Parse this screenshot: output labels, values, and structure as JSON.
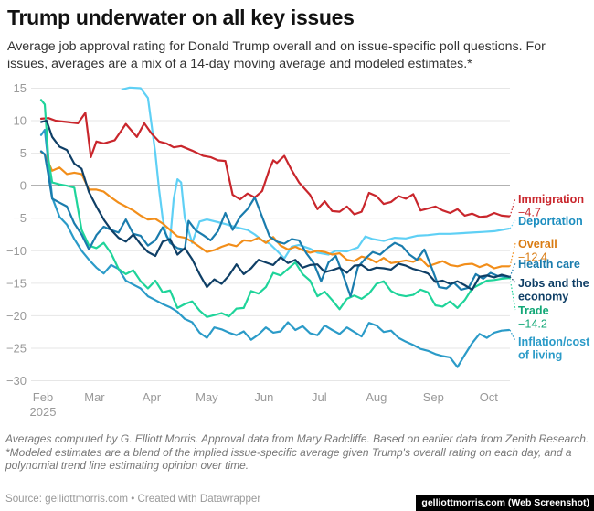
{
  "chart_data": {
    "type": "line",
    "title": "Trump underwater on all key issues",
    "subtitle": "Average job approval rating for Donald Trump overall and on issue-specific poll questions. For issues, averages are a mix of a 14-day moving average and modeled estimates.*",
    "xlabel": "",
    "ylabel": "",
    "ylim": [
      -30,
      15
    ],
    "yticks": [
      15,
      10,
      5,
      0,
      -5,
      -10,
      -15,
      -20,
      -25,
      -30
    ],
    "ytick_labels": [
      "15",
      "10",
      "5",
      "0",
      "−5",
      "−10",
      "−15",
      "−20",
      "−25",
      "−30"
    ],
    "x_unit": "days since Feb 1, 2025",
    "xlim": [
      0,
      254
    ],
    "xticks": [
      {
        "day": 0,
        "label": "Feb",
        "sublabel": "2025"
      },
      {
        "day": 28,
        "label": "Mar"
      },
      {
        "day": 59,
        "label": "Apr"
      },
      {
        "day": 89,
        "label": "May"
      },
      {
        "day": 120,
        "label": "Jun"
      },
      {
        "day": 150,
        "label": "Jul"
      },
      {
        "day": 181,
        "label": "Aug"
      },
      {
        "day": 212,
        "label": "Sep"
      },
      {
        "day": 242,
        "label": "Oct"
      }
    ],
    "grid": true,
    "zero_line": true,
    "series": [
      {
        "name": "Immigration",
        "color": "#c9262c",
        "end_value_label": "−4.7",
        "x": [
          0,
          4,
          8,
          14,
          20,
          24,
          27,
          30,
          34,
          40,
          46,
          52,
          56,
          60,
          64,
          68,
          72,
          76,
          82,
          88,
          92,
          96,
          100,
          104,
          108,
          112,
          116,
          120,
          124,
          126,
          128,
          132,
          136,
          140,
          146,
          150,
          154,
          158,
          162,
          166,
          170,
          174,
          178,
          182,
          186,
          190,
          194,
          198,
          202,
          206,
          210,
          214,
          218,
          222,
          226,
          230,
          234,
          238,
          242,
          246,
          250,
          254
        ],
        "values": [
          10.3,
          10.4,
          10,
          9.8,
          9.6,
          11.2,
          4.4,
          6.8,
          6.5,
          7,
          9.5,
          7.5,
          9.6,
          8,
          6.8,
          6.5,
          5.9,
          6.1,
          5.4,
          4.6,
          4.4,
          3.9,
          3.8,
          -1.4,
          -2.1,
          -1.2,
          -1.8,
          -0.8,
          2.6,
          3.9,
          3.5,
          4.6,
          2.4,
          0.5,
          -1.4,
          -3.6,
          -2.4,
          -3.9,
          -4.0,
          -3.2,
          -4.4,
          -4.0,
          -1.1,
          -1.6,
          -2.8,
          -2.5,
          -1.6,
          -2.0,
          -1.3,
          -3.8,
          -3.5,
          -3.2,
          -3.8,
          -4.2,
          -3.6,
          -4.6,
          -4.3,
          -4.8,
          -4.7,
          -4.2,
          -4.6,
          -4.7
        ]
      },
      {
        "name": "Deportation",
        "color": "#5fd0f5",
        "end_value_label": "",
        "x": [
          44,
          48,
          54,
          58,
          62,
          64,
          66,
          68,
          70,
          72,
          74,
          76,
          78,
          82,
          86,
          90,
          96,
          100,
          106,
          112,
          116,
          120,
          124,
          128,
          132,
          136,
          140,
          146,
          150,
          156,
          160,
          166,
          172,
          176,
          180,
          186,
          192,
          198,
          204,
          210,
          216,
          222,
          228,
          234,
          240,
          246,
          250,
          254
        ],
        "values": [
          14.8,
          15.1,
          15,
          13.5,
          5,
          -0.5,
          -5,
          -7.8,
          -8.4,
          -2,
          1,
          0.5,
          -5,
          -8.8,
          -5.5,
          -5.2,
          -5.6,
          -5.9,
          -6.4,
          -6.8,
          -7.5,
          -8.4,
          -8.9,
          -10.0,
          -11.2,
          -9.4,
          -9.1,
          -9.7,
          -10.3,
          -10.6,
          -10.0,
          -10.1,
          -9.5,
          -7.8,
          -8.2,
          -8.5,
          -8.0,
          -8.1,
          -7.7,
          -7.6,
          -7.4,
          -7.4,
          -7.3,
          -7.2,
          -7.1,
          -7.0,
          -6.8,
          -6.6
        ]
      },
      {
        "name": "Overall",
        "color": "#f28e1a",
        "end_value_label": "−12.4",
        "x": [
          0,
          2,
          6,
          10,
          14,
          18,
          22,
          26,
          30,
          34,
          38,
          42,
          46,
          50,
          54,
          58,
          62,
          66,
          70,
          74,
          78,
          82,
          86,
          90,
          94,
          98,
          102,
          106,
          110,
          114,
          118,
          122,
          126,
          130,
          134,
          138,
          142,
          146,
          150,
          154,
          158,
          162,
          166,
          170,
          174,
          178,
          182,
          186,
          190,
          194,
          198,
          202,
          206,
          210,
          214,
          218,
          222,
          226,
          230,
          234,
          238,
          242,
          246,
          250,
          254
        ],
        "values": [
          5.2,
          4.8,
          2.3,
          2.8,
          1.8,
          2.0,
          1.8,
          -0.6,
          -0.6,
          -0.9,
          -1.8,
          -2.6,
          -3.2,
          -3.8,
          -4.6,
          -5.2,
          -5.1,
          -5.8,
          -6.8,
          -7.8,
          -8.0,
          -8.6,
          -9.4,
          -10.2,
          -9.9,
          -9.4,
          -9.0,
          -9.3,
          -8.4,
          -8.5,
          -8.0,
          -8.8,
          -7.9,
          -9.2,
          -9.8,
          -9.4,
          -9.9,
          -10.3,
          -10.0,
          -10.2,
          -10.6,
          -10.4,
          -11.4,
          -11.6,
          -10.9,
          -11.2,
          -11.8,
          -11.1,
          -11.9,
          -11.7,
          -11.5,
          -11.7,
          -11.2,
          -12.4,
          -12.0,
          -11.6,
          -12.2,
          -12.4,
          -12.1,
          -12.0,
          -12.5,
          -12.1,
          -12.7,
          -12.4,
          -12.4
        ]
      },
      {
        "name": "Health care",
        "color": "#1a7cad",
        "end_value_label": "",
        "x": [
          0,
          2,
          4,
          6,
          10,
          14,
          18,
          22,
          26,
          30,
          34,
          38,
          42,
          46,
          50,
          54,
          58,
          62,
          66,
          70,
          74,
          78,
          80,
          84,
          88,
          92,
          96,
          100,
          104,
          108,
          112,
          116,
          120,
          124,
          128,
          132,
          136,
          140,
          144,
          148,
          152,
          156,
          160,
          164,
          168,
          172,
          176,
          180,
          184,
          188,
          192,
          196,
          200,
          204,
          208,
          212,
          216,
          220,
          224,
          228,
          232,
          236,
          240,
          244,
          248,
          254
        ],
        "values": [
          5.3,
          4.8,
          1.5,
          -2,
          -2.6,
          -3.2,
          -5.8,
          -7.5,
          -9.8,
          -7.6,
          -6.3,
          -6.8,
          -7.2,
          -5.2,
          -7.4,
          -7.7,
          -9.2,
          -8.4,
          -6.4,
          -8.8,
          -9.6,
          -9.8,
          -5.4,
          -6.9,
          -7.6,
          -8.4,
          -7.0,
          -4.2,
          -6.8,
          -4.8,
          -3.6,
          -1.8,
          -4.8,
          -7.8,
          -8.6,
          -8.9,
          -8.2,
          -8.4,
          -10.4,
          -11.9,
          -14.7,
          -11.8,
          -10.8,
          -13.8,
          -17.0,
          -12.5,
          -11.2,
          -10.2,
          -10.6,
          -9.6,
          -8.8,
          -9.3,
          -10.6,
          -11.4,
          -9.8,
          -12.6,
          -15.6,
          -15.8,
          -14.9,
          -16.0,
          -15.7,
          -13.6,
          -14.3,
          -13.4,
          -13.9,
          -14.0
        ]
      },
      {
        "name": "Jobs and the economy",
        "color": "#0f3f66",
        "end_value_label": "",
        "x": [
          0,
          3,
          6,
          10,
          14,
          18,
          22,
          26,
          30,
          34,
          38,
          42,
          46,
          50,
          54,
          58,
          62,
          66,
          70,
          74,
          78,
          82,
          86,
          90,
          94,
          98,
          102,
          106,
          110,
          114,
          118,
          122,
          126,
          130,
          134,
          138,
          142,
          146,
          150,
          154,
          158,
          162,
          166,
          170,
          174,
          178,
          182,
          186,
          190,
          194,
          198,
          202,
          206,
          210,
          214,
          218,
          222,
          226,
          230,
          234,
          238,
          242,
          246,
          250,
          254
        ],
        "values": [
          9.8,
          10.0,
          7.5,
          6.0,
          5.5,
          3.4,
          2.6,
          -1.0,
          -3.2,
          -5.2,
          -6.8,
          -8.0,
          -8.6,
          -7.5,
          -9.0,
          -10.2,
          -10.8,
          -8.6,
          -8.2,
          -10.6,
          -9.6,
          -11.3,
          -13.6,
          -15.6,
          -14.4,
          -15.1,
          -13.8,
          -12.1,
          -13.6,
          -12.7,
          -11.4,
          -11.8,
          -12.2,
          -11.0,
          -11.9,
          -11.4,
          -12.6,
          -12.2,
          -12.1,
          -13.3,
          -13.0,
          -12.6,
          -13.4,
          -12.3,
          -12.2,
          -13.0,
          -12.6,
          -12.7,
          -12.9,
          -12.0,
          -12.3,
          -12.8,
          -13.1,
          -13.5,
          -14.8,
          -14.6,
          -15.1,
          -14.7,
          -15.3,
          -16.0,
          -14.0,
          -13.8,
          -14.1,
          -13.7,
          -14.0
        ]
      },
      {
        "name": "Trade",
        "color": "#1fd49a",
        "end_value_label": "−14.2",
        "x": [
          0,
          2,
          4,
          6,
          10,
          14,
          18,
          22,
          26,
          30,
          34,
          38,
          42,
          46,
          50,
          54,
          58,
          62,
          66,
          70,
          74,
          78,
          82,
          86,
          90,
          94,
          98,
          102,
          106,
          110,
          114,
          118,
          122,
          126,
          130,
          134,
          138,
          142,
          146,
          150,
          154,
          158,
          162,
          166,
          170,
          174,
          178,
          182,
          186,
          190,
          194,
          198,
          202,
          206,
          210,
          214,
          218,
          222,
          226,
          230,
          234,
          238,
          242,
          246,
          250,
          254
        ],
        "values": [
          13.2,
          12.5,
          4,
          0.5,
          0.2,
          0.0,
          -0.3,
          -6.8,
          -9.2,
          -9.6,
          -8.8,
          -10.4,
          -12.8,
          -13.6,
          -13.0,
          -14.7,
          -15.8,
          -14.6,
          -16.4,
          -16.1,
          -18.8,
          -18.2,
          -17.8,
          -19.2,
          -20.2,
          -19.9,
          -19.6,
          -20.1,
          -18.9,
          -18.8,
          -16.2,
          -16.6,
          -15.6,
          -13.4,
          -13.8,
          -12.8,
          -11.8,
          -13.6,
          -14.6,
          -17.0,
          -16.3,
          -17.6,
          -19.0,
          -17.4,
          -16.9,
          -17.4,
          -16.6,
          -15.1,
          -14.7,
          -16.2,
          -16.8,
          -17.0,
          -16.8,
          -16.0,
          -16.4,
          -18.4,
          -18.6,
          -17.8,
          -18.8,
          -17.6,
          -15.8,
          -15.2,
          -14.6,
          -14.5,
          -14.3,
          -14.2
        ]
      },
      {
        "name": "Inflation/cost of living",
        "color": "#2b9bc8",
        "end_value_label": "",
        "x": [
          0,
          2,
          6,
          10,
          14,
          18,
          22,
          26,
          30,
          34,
          38,
          42,
          46,
          50,
          54,
          58,
          62,
          66,
          70,
          74,
          78,
          82,
          86,
          90,
          94,
          98,
          102,
          106,
          110,
          114,
          118,
          122,
          126,
          130,
          134,
          138,
          142,
          146,
          150,
          154,
          158,
          162,
          166,
          170,
          174,
          178,
          182,
          186,
          190,
          194,
          198,
          202,
          206,
          210,
          214,
          218,
          222,
          226,
          230,
          234,
          238,
          242,
          246,
          250,
          254
        ],
        "values": [
          7.8,
          8.6,
          -1.8,
          -4.8,
          -6.0,
          -8.2,
          -10.0,
          -11.4,
          -12.6,
          -13.5,
          -12.2,
          -12.8,
          -14.6,
          -15.2,
          -15.8,
          -17.0,
          -17.6,
          -18.2,
          -18.7,
          -19.4,
          -20.5,
          -21.0,
          -22.6,
          -23.4,
          -21.8,
          -22.1,
          -22.6,
          -23.0,
          -22.4,
          -23.7,
          -22.9,
          -21.8,
          -22.6,
          -22.4,
          -21.0,
          -22.2,
          -21.6,
          -22.7,
          -23.0,
          -21.5,
          -22.2,
          -22.8,
          -21.8,
          -22.5,
          -23.2,
          -21.1,
          -21.5,
          -22.5,
          -22.3,
          -23.4,
          -24.0,
          -24.5,
          -25.1,
          -25.4,
          -25.9,
          -26.2,
          -26.4,
          -27.9,
          -26.0,
          -24.2,
          -22.8,
          -23.4,
          -22.6,
          -22.3,
          -22.2
        ]
      }
    ],
    "end_labels": [
      {
        "series": "Immigration",
        "text": "Immigration",
        "value_text": "−4.7",
        "color": "#c9262c"
      },
      {
        "series": "Deportation",
        "text": "Deportation",
        "value_text": "",
        "color": "#1b8dbf"
      },
      {
        "series": "Overall",
        "text": "Overall",
        "value_text": "−12.4",
        "color": "#d97b12"
      },
      {
        "series": "Health care",
        "text": "Health care",
        "value_text": "",
        "color": "#1a7cad"
      },
      {
        "series": "Jobs and the economy",
        "text": "Jobs and the",
        "text2": "economy",
        "value_text": "",
        "color": "#0f3f66"
      },
      {
        "series": "Trade",
        "text": "Trade",
        "value_text": "−14.2",
        "color": "#13a877"
      },
      {
        "series": "Inflation/cost of living",
        "text": "Inflation/cost",
        "text2": "of living",
        "value_text": "",
        "color": "#2b9bc8"
      }
    ]
  },
  "header": {
    "title": "Trump underwater on all key issues",
    "subtitle": "Average job approval rating for Donald Trump overall and on issue-specific poll questions. For issues, averages are a mix of a 14-day moving average and modeled estimates.*"
  },
  "footer": {
    "note1": "Averages computed by G. Elliott Morris. Approval data from Mary Radcliffe. Based on earlier data from Zenith Research.",
    "note2": "*Modeled estimates are a blend of the implied issue-specific average given Trump's overall rating on each day, and a polynomial trend line estimating opinion over time.",
    "source": "Source: gelliottmorris.com • Created with Datawrapper",
    "credit": "gelliottmorris.com (Web Screenshot)"
  }
}
